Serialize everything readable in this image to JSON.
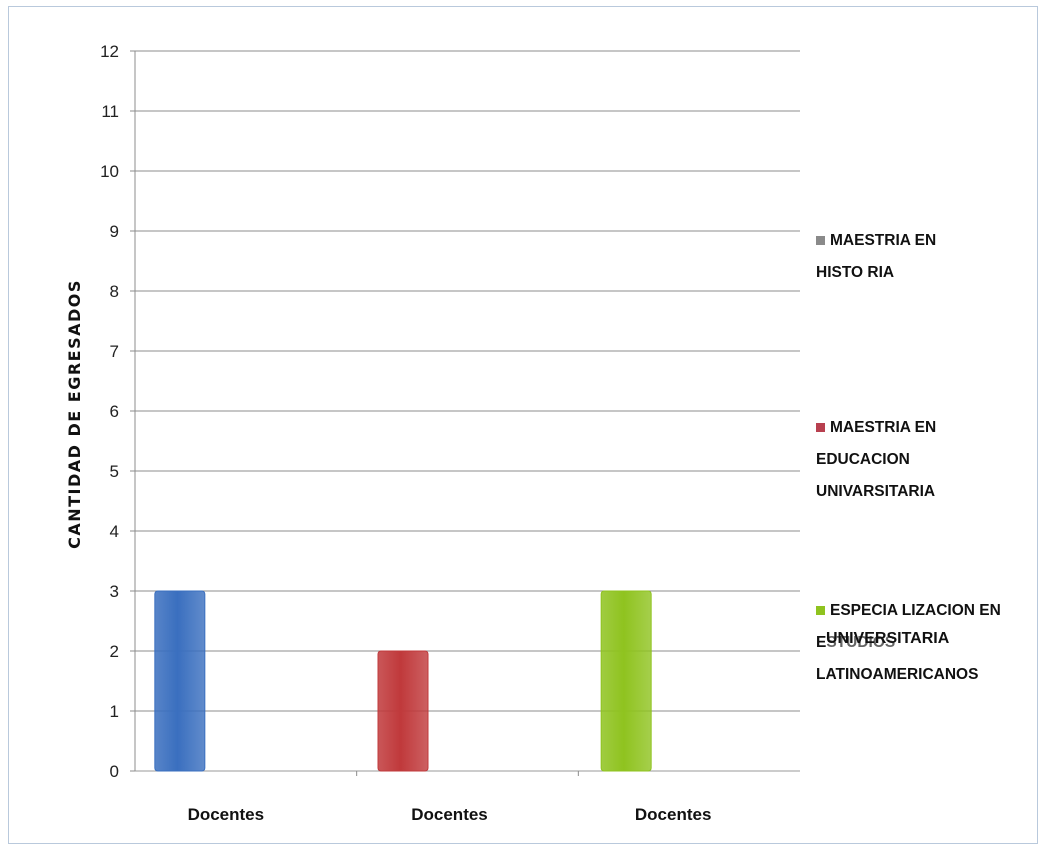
{
  "chart_data": {
    "type": "bar",
    "categories": [
      "Docentes",
      "Docentes",
      "Docentes"
    ],
    "series": [
      {
        "name": "MAESTRIA EN HISTORIA",
        "values": [
          3,
          0,
          0
        ],
        "color": "#3a6fbf"
      },
      {
        "name": "MAESTRIA EN EDUCACION UNIVARSITARIA",
        "values": [
          0,
          2,
          0
        ],
        "color": "#c0393b"
      },
      {
        "name": "ESPECIALIZACION EN ESTUDIOS LATINOAMERICANOS",
        "values": [
          0,
          0,
          3
        ],
        "color": "#8fc31f"
      }
    ],
    "ylabel": "CANTIDAD DE EGRESADOS",
    "ylim": [
      0,
      12
    ],
    "yticks": [
      0,
      1,
      2,
      3,
      4,
      5,
      6,
      7,
      8,
      9,
      10,
      11,
      12
    ],
    "grid": true,
    "legend_position": "right"
  },
  "legend_items": [
    {
      "label": "MAESTRIA EN\nHISTO RIA",
      "swatch": "#8a8a8a"
    },
    {
      "label": "MAESTRIA EN\nEDUCACION\nUNIVARSITARIA",
      "swatch": "#b8404f"
    },
    {
      "label": "ESPECIA LIZACION EN\nESTUDIOS\nLATINOAMERICANOS",
      "swatch": "#8fc31f"
    }
  ],
  "overlay_text": "UNIVERSITARIA"
}
